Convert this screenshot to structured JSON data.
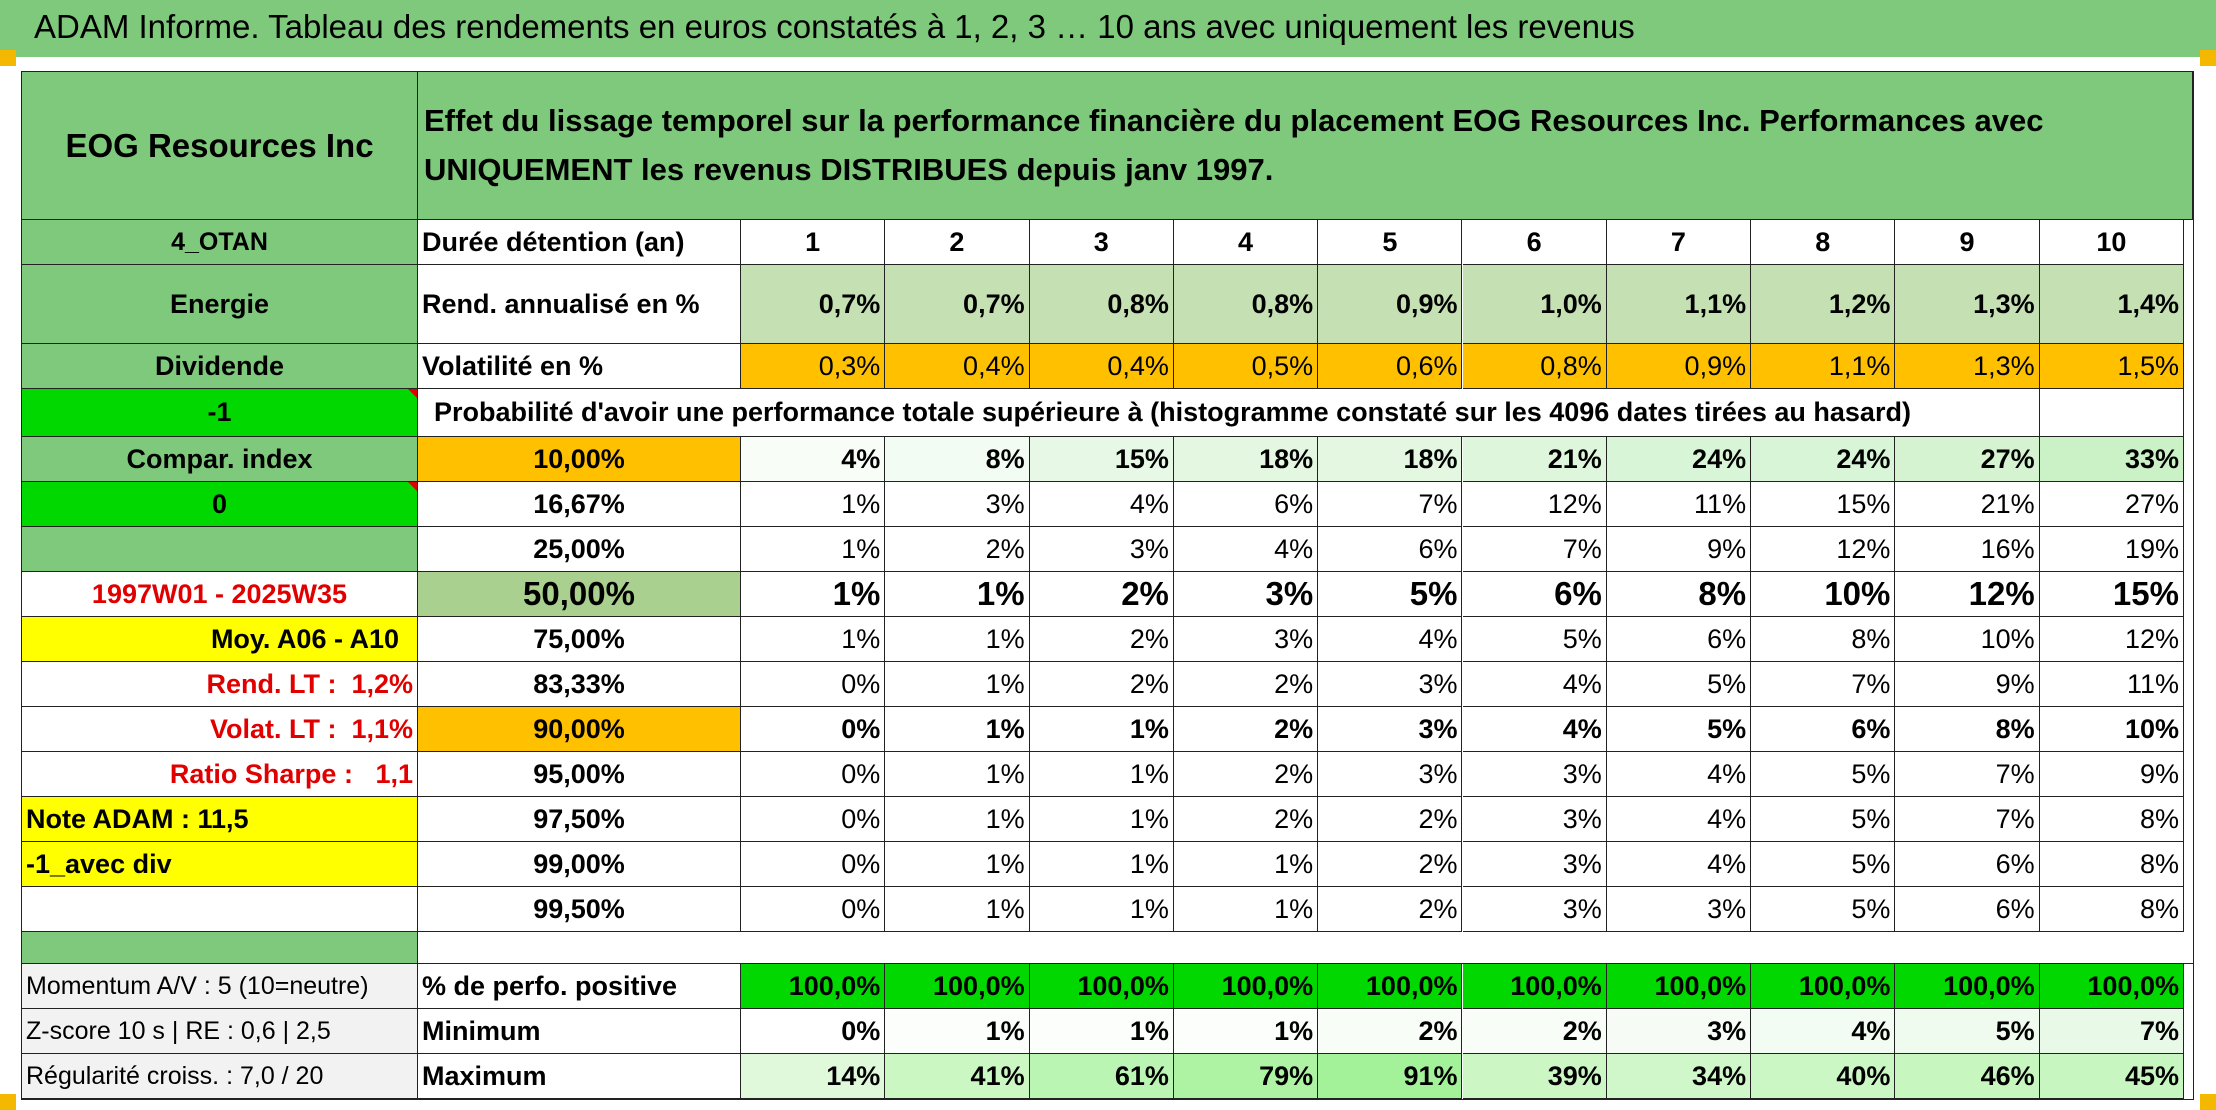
{
  "header_title": "ADAM Informe. Tableau des rendements en euros constatés à 1, 2, 3 … 10 ans avec uniquement les revenus",
  "colors": {
    "header_green": "#7fc97c",
    "bright_green": "#00d800",
    "yellow": "#ffff00",
    "orange": "#ffc000",
    "light_green": "#c5e0b3",
    "alert_red": "#e00000"
  },
  "sidebar": {
    "company": "EOG Resources Inc",
    "code": "4_OTAN",
    "sector": "Energie",
    "type": "Dividende",
    "flag1": "-1",
    "compar_label": "Compar. index",
    "flag2": "0",
    "period": "1997W01 - 2025W35",
    "moy": "Moy. A06 - A10",
    "rend_lt_label": "Rend. LT :",
    "rend_lt_value": "1,2%",
    "volat_lt_label": "Volat. LT :",
    "volat_lt_value": "1,1%",
    "sharpe_label": "Ratio Sharpe :",
    "sharpe_value": "1,1",
    "note": "Note ADAM : 11,5",
    "div_flag": "-1_avec div",
    "momentum": "Momentum A/V : 5 (10=neutre)",
    "zscore": "Z-score 10 s | RE : 0,6 | 2,5",
    "regularite": "Régularité croiss. : 7,0 / 20"
  },
  "table": {
    "description": "Effet du lissage temporel sur la performance financière du placement EOG Resources Inc. Performances avec UNIQUEMENT les revenus DISTRIBUES depuis janv 1997.",
    "duration_label": "Durée détention (an)",
    "years": [
      "1",
      "2",
      "3",
      "4",
      "5",
      "6",
      "7",
      "8",
      "9",
      "10"
    ],
    "rend_label": "Rend. annualisé en %",
    "rend": [
      "0,7%",
      "0,7%",
      "0,8%",
      "0,8%",
      "0,9%",
      "1,0%",
      "1,1%",
      "1,2%",
      "1,3%",
      "1,4%"
    ],
    "vol_label": "Volatilité en %",
    "vol": [
      "0,3%",
      "0,4%",
      "0,4%",
      "0,5%",
      "0,6%",
      "0,8%",
      "0,9%",
      "1,1%",
      "1,3%",
      "1,5%"
    ],
    "prob_label": "Probabilité d'avoir une performance totale supérieure à (histogramme constaté sur les 4096 dates tirées au hasard)",
    "prob_rows": [
      {
        "threshold": "10,00%",
        "values": [
          "4%",
          "8%",
          "15%",
          "18%",
          "18%",
          "21%",
          "24%",
          "24%",
          "27%",
          "33%"
        ]
      },
      {
        "threshold": "16,67%",
        "values": [
          "1%",
          "3%",
          "4%",
          "6%",
          "7%",
          "12%",
          "11%",
          "15%",
          "21%",
          "27%"
        ]
      },
      {
        "threshold": "25,00%",
        "values": [
          "1%",
          "2%",
          "3%",
          "4%",
          "6%",
          "7%",
          "9%",
          "12%",
          "16%",
          "19%"
        ]
      },
      {
        "threshold": "50,00%",
        "values": [
          "1%",
          "1%",
          "2%",
          "3%",
          "5%",
          "6%",
          "8%",
          "10%",
          "12%",
          "15%"
        ]
      },
      {
        "threshold": "75,00%",
        "values": [
          "1%",
          "1%",
          "2%",
          "3%",
          "4%",
          "5%",
          "6%",
          "8%",
          "10%",
          "12%"
        ]
      },
      {
        "threshold": "83,33%",
        "values": [
          "0%",
          "1%",
          "2%",
          "2%",
          "3%",
          "4%",
          "5%",
          "7%",
          "9%",
          "11%"
        ]
      },
      {
        "threshold": "90,00%",
        "values": [
          "0%",
          "1%",
          "1%",
          "2%",
          "3%",
          "4%",
          "5%",
          "6%",
          "8%",
          "10%"
        ]
      },
      {
        "threshold": "95,00%",
        "values": [
          "0%",
          "1%",
          "1%",
          "2%",
          "3%",
          "3%",
          "4%",
          "5%",
          "7%",
          "9%"
        ]
      },
      {
        "threshold": "97,50%",
        "values": [
          "0%",
          "1%",
          "1%",
          "2%",
          "2%",
          "3%",
          "4%",
          "5%",
          "7%",
          "8%"
        ]
      },
      {
        "threshold": "99,00%",
        "values": [
          "0%",
          "1%",
          "1%",
          "1%",
          "2%",
          "3%",
          "4%",
          "5%",
          "6%",
          "8%"
        ]
      },
      {
        "threshold": "99,50%",
        "values": [
          "0%",
          "1%",
          "1%",
          "1%",
          "2%",
          "3%",
          "3%",
          "5%",
          "6%",
          "8%"
        ]
      }
    ],
    "pos_label": "% de perfo. positive",
    "pos": [
      "100,0%",
      "100,0%",
      "100,0%",
      "100,0%",
      "100,0%",
      "100,0%",
      "100,0%",
      "100,0%",
      "100,0%",
      "100,0%"
    ],
    "min_label": "Minimum",
    "min": [
      "0%",
      "1%",
      "1%",
      "1%",
      "2%",
      "2%",
      "3%",
      "4%",
      "5%",
      "7%"
    ],
    "max_label": "Maximum",
    "max": [
      "14%",
      "41%",
      "61%",
      "79%",
      "91%",
      "39%",
      "34%",
      "40%",
      "46%",
      "45%"
    ]
  }
}
